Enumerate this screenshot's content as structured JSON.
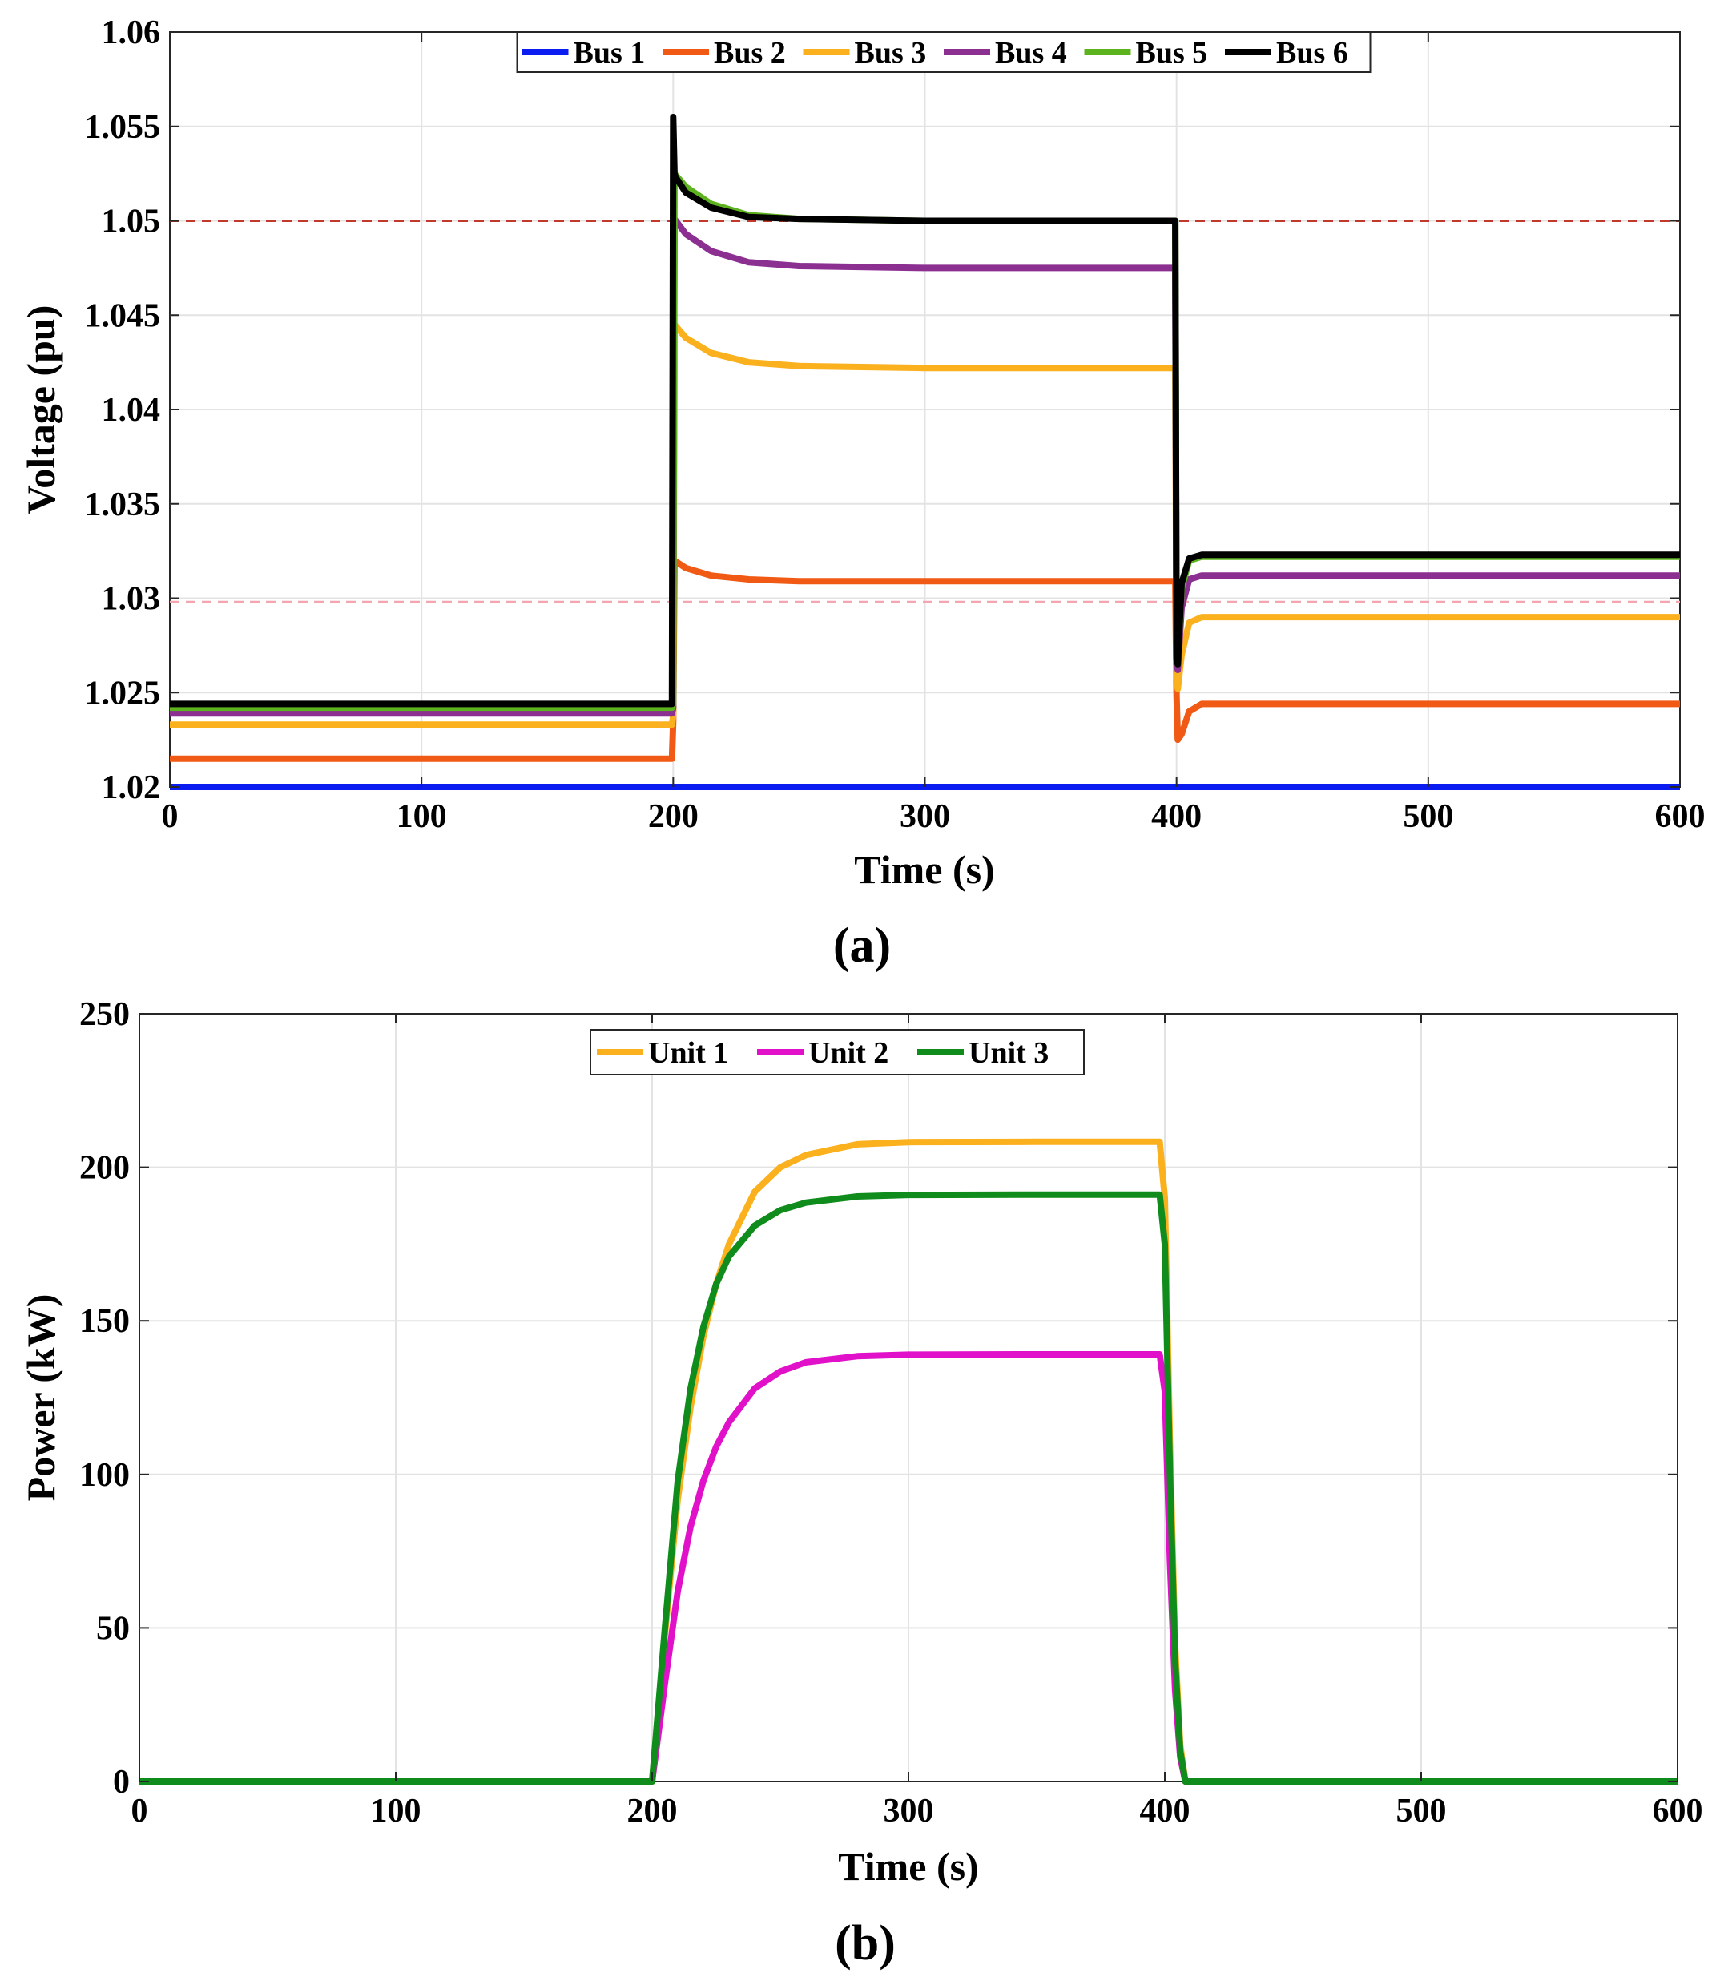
{
  "panels": [
    {
      "label": "(a)",
      "chart_data": {
        "type": "line",
        "title": "",
        "xlabel": "Time (s)",
        "ylabel": "Voltage (pu)",
        "xlim": [
          0,
          600
        ],
        "ylim": [
          1.02,
          1.06
        ],
        "xticks": [
          0,
          100,
          200,
          300,
          400,
          500,
          600
        ],
        "yticks": [
          1.02,
          1.025,
          1.03,
          1.035,
          1.04,
          1.045,
          1.05,
          1.055,
          1.06
        ],
        "x_tick_labels": [
          "0",
          "100",
          "200",
          "300",
          "400",
          "500",
          "600"
        ],
        "y_tick_labels": [
          "1.02",
          "1.025",
          "1.03",
          "1.035",
          "1.04",
          "1.045",
          "1.05",
          "1.055",
          "1.06"
        ],
        "grid": true,
        "legend_position": "top-center",
        "reference_lines": [
          {
            "y": 1.05,
            "color": "#c0392b",
            "style": "dashed"
          },
          {
            "y": 1.0298,
            "color": "#f4a6b0",
            "style": "dashed"
          }
        ],
        "series": [
          {
            "name": "Bus 1",
            "color": "#0a1cf0",
            "x": [
              0,
              600
            ],
            "y": [
              1.02,
              1.02
            ]
          },
          {
            "name": "Bus 2",
            "color": "#f05a14",
            "x": [
              0,
              199.5,
              200,
              200.5,
              205,
              215,
              230,
              250,
              300,
              399.5,
              400,
              400.5,
              402,
              405,
              410,
              600
            ],
            "y": [
              1.0215,
              1.0215,
              1.0235,
              1.032,
              1.0316,
              1.0312,
              1.031,
              1.0309,
              1.0309,
              1.0309,
              1.0248,
              1.0225,
              1.0228,
              1.024,
              1.0244,
              1.0244
            ]
          },
          {
            "name": "Bus 3",
            "color": "#fbb01e",
            "x": [
              0,
              199.5,
              200,
              200.5,
              205,
              215,
              230,
              250,
              300,
              399.5,
              400,
              400.5,
              402,
              405,
              410,
              600
            ],
            "y": [
              1.0233,
              1.0233,
              1.0238,
              1.0445,
              1.0438,
              1.043,
              1.0425,
              1.0423,
              1.0422,
              1.0422,
              1.0258,
              1.0252,
              1.027,
              1.0287,
              1.029,
              1.029
            ]
          },
          {
            "name": "Bus 4",
            "color": "#8b2f91",
            "x": [
              0,
              199.5,
              200,
              200.5,
              205,
              215,
              230,
              250,
              300,
              399.5,
              400,
              400.5,
              402,
              405,
              410,
              600
            ],
            "y": [
              1.0239,
              1.0239,
              1.0242,
              1.0501,
              1.0493,
              1.0484,
              1.0478,
              1.0476,
              1.0475,
              1.0475,
              1.0265,
              1.0262,
              1.0295,
              1.031,
              1.0312,
              1.0312
            ]
          },
          {
            "name": "Bus 5",
            "color": "#5cb31e",
            "x": [
              0,
              199.5,
              200,
              200.5,
              205,
              215,
              230,
              250,
              300,
              399.5,
              400,
              400.5,
              402,
              405,
              410,
              600
            ],
            "y": [
              1.0242,
              1.0242,
              1.0244,
              1.0525,
              1.0518,
              1.0509,
              1.0503,
              1.0501,
              1.05,
              1.05,
              1.0268,
              1.0265,
              1.0305,
              1.032,
              1.0322,
              1.0322
            ]
          },
          {
            "name": "Bus 6",
            "color": "#000000",
            "x": [
              0,
              199.5,
              200,
              200.5,
              201,
              205,
              215,
              230,
              250,
              300,
              399.5,
              400,
              400.5,
              402,
              405,
              410,
              600
            ],
            "y": [
              1.0244,
              1.0244,
              1.0555,
              1.0525,
              1.0523,
              1.0515,
              1.0507,
              1.0502,
              1.0501,
              1.05,
              1.05,
              1.0268,
              1.0265,
              1.0308,
              1.0321,
              1.0323,
              1.0323
            ]
          }
        ]
      }
    },
    {
      "label": "(b)",
      "chart_data": {
        "type": "line",
        "title": "",
        "xlabel": "Time (s)",
        "ylabel": "Power (kW)",
        "xlim": [
          0,
          600
        ],
        "ylim": [
          0,
          250
        ],
        "xticks": [
          0,
          100,
          200,
          300,
          400,
          500,
          600
        ],
        "yticks": [
          0,
          50,
          100,
          150,
          200,
          250
        ],
        "x_tick_labels": [
          "0",
          "100",
          "200",
          "300",
          "400",
          "500",
          "600"
        ],
        "y_tick_labels": [
          "0",
          "50",
          "100",
          "150",
          "200",
          "250"
        ],
        "grid": true,
        "legend_position": "top-center",
        "series": [
          {
            "name": "Unit 1",
            "color": "#fbb01e",
            "x": [
              0,
              200,
              205,
              210,
              215,
              220,
              225,
              230,
              240,
              250,
              260,
              280,
              300,
              350,
              398,
              400,
              402,
              404,
              406,
              408,
              600
            ],
            "y": [
              0,
              0,
              48,
              92,
              122,
              145,
              162,
              175,
              192,
              200,
              204,
              207.5,
              208.2,
              208.3,
              208.3,
              190,
              110,
              45,
              12,
              0,
              0
            ]
          },
          {
            "name": "Unit 2",
            "color": "#e011c8",
            "x": [
              0,
              200,
              205,
              210,
              215,
              220,
              225,
              230,
              240,
              250,
              260,
              280,
              300,
              350,
              398,
              400,
              402,
              404,
              406,
              408,
              600
            ],
            "y": [
              0,
              0,
              32,
              62,
              83,
              98,
              109,
              117,
              128,
              133.5,
              136.5,
              138.5,
              139,
              139.1,
              139.1,
              127,
              72,
              30,
              8,
              0,
              0
            ]
          },
          {
            "name": "Unit 3",
            "color": "#0f8c1c",
            "x": [
              0,
              200,
              205,
              210,
              215,
              220,
              225,
              230,
              240,
              250,
              260,
              280,
              300,
              350,
              398,
              400,
              402,
              404,
              406,
              408,
              600
            ],
            "y": [
              0,
              0,
              50,
              98,
              128,
              148,
              162,
              171,
              181,
              186,
              188.5,
              190.5,
              191,
              191.1,
              191.1,
              175,
              100,
              40,
              10,
              0,
              0
            ]
          }
        ]
      }
    }
  ]
}
